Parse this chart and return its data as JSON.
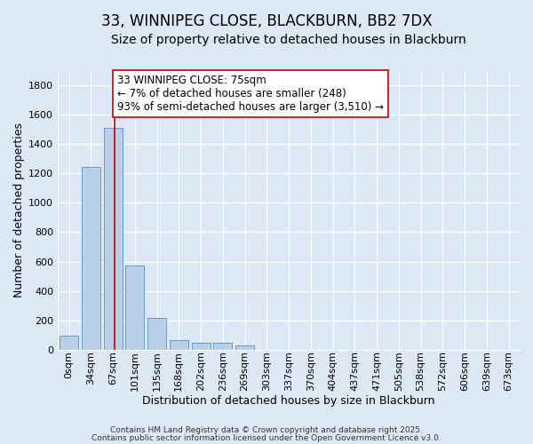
{
  "title": "33, WINNIPEG CLOSE, BLACKBURN, BB2 7DX",
  "subtitle": "Size of property relative to detached houses in Blackburn",
  "xlabel": "Distribution of detached houses by size in Blackburn",
  "ylabel": "Number of detached properties",
  "bar_labels": [
    "0sqm",
    "34sqm",
    "67sqm",
    "101sqm",
    "135sqm",
    "168sqm",
    "202sqm",
    "236sqm",
    "269sqm",
    "303sqm",
    "337sqm",
    "370sqm",
    "404sqm",
    "437sqm",
    "471sqm",
    "505sqm",
    "538sqm",
    "572sqm",
    "606sqm",
    "639sqm",
    "673sqm"
  ],
  "bar_values": [
    95,
    1240,
    1510,
    570,
    215,
    68,
    50,
    45,
    28,
    0,
    0,
    0,
    0,
    0,
    0,
    0,
    0,
    0,
    0,
    0,
    0
  ],
  "bar_color": "#b8d0e8",
  "bar_edge_color": "#6699cc",
  "vline_color": "#cc0000",
  "vline_pos": 2.08,
  "annotation_text": "33 WINNIPEG CLOSE: 75sqm\n← 7% of detached houses are smaller (248)\n93% of semi-detached houses are larger (3,510) →",
  "annotation_box_color": "#ffffff",
  "annotation_box_edge": "#cc0000",
  "ylim": [
    0,
    1900
  ],
  "yticks": [
    0,
    200,
    400,
    600,
    800,
    1000,
    1200,
    1400,
    1600,
    1800
  ],
  "background_color": "#dce8f5",
  "grid_color": "#ffffff",
  "footer1": "Contains HM Land Registry data © Crown copyright and database right 2025.",
  "footer2": "Contains public sector information licensed under the Open Government Licence v3.0.",
  "title_fontsize": 12,
  "subtitle_fontsize": 10,
  "annotation_fontsize": 8.5,
  "axis_label_fontsize": 9,
  "tick_fontsize": 8,
  "footer_fontsize": 6.5
}
